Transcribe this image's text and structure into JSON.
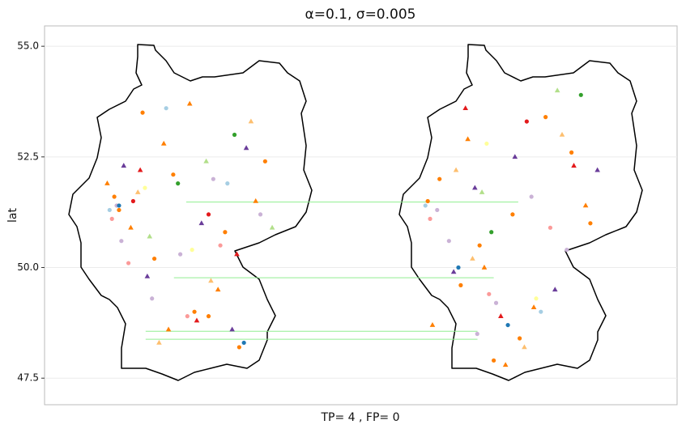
{
  "chart_data": {
    "type": "scatter",
    "title": "α=0.1, σ=0.005",
    "x_label": "TP= 4 , FP= 0",
    "y_label": "lat",
    "xlim": [
      3.84,
      30.68
    ],
    "ylim": [
      46.9,
      55.46
    ],
    "yticks": [
      47.5,
      {
        "value": 50,
        "label": "50.0"
      },
      52.5,
      {
        "value": 55,
        "label": "55.0"
      }
    ],
    "grid": true,
    "series": [
      {
        "shape": "circle",
        "color": "#ff7f00",
        "x": [
          7.0,
          8.5,
          10.2,
          12.1,
          9.3,
          6.8,
          11.5,
          8.0,
          13.2,
          10.8,
          20.6,
          22.3,
          24.0,
          21.5,
          26.2,
          23.7,
          25.1,
          20.1,
          22.9,
          27.0
        ],
        "y": [
          51.3,
          50.2,
          49.0,
          48.2,
          52.1,
          51.6,
          50.8,
          53.5,
          52.4,
          48.9,
          52.0,
          50.5,
          48.4,
          49.6,
          52.6,
          51.2,
          53.4,
          51.5,
          47.9,
          51.0
        ]
      },
      {
        "shape": "triangle",
        "color": "#ff7f00",
        "x": [
          9.1,
          7.5,
          11.2,
          8.9,
          12.8,
          10.0,
          6.5,
          20.3,
          22.5,
          24.6,
          26.8,
          21.8,
          23.4
        ],
        "y": [
          48.6,
          50.9,
          49.5,
          52.8,
          51.5,
          53.7,
          51.9,
          48.7,
          50.0,
          49.1,
          51.4,
          52.9,
          47.8
        ]
      },
      {
        "shape": "triangle",
        "color": "#6a3d9a",
        "x": [
          8.2,
          10.5,
          12.4,
          7.2,
          11.8,
          21.2,
          23.8,
          25.5,
          22.1,
          27.3
        ],
        "y": [
          49.8,
          51.0,
          52.7,
          52.3,
          48.6,
          49.9,
          52.5,
          49.5,
          51.8,
          52.2
        ]
      },
      {
        "shape": "circle",
        "color": "#cab2d6",
        "x": [
          7.1,
          9.6,
          11.0,
          8.4,
          13.0,
          6.9,
          21.0,
          23.0,
          24.5,
          20.5,
          26.0,
          22.2
        ],
        "y": [
          50.6,
          50.3,
          52.0,
          49.3,
          51.2,
          51.4,
          50.6,
          49.2,
          51.6,
          51.3,
          50.4,
          48.5
        ]
      },
      {
        "shape": "triangle",
        "color": "#fdbf6f",
        "x": [
          8.7,
          10.9,
          12.6,
          7.8,
          22.0,
          24.2,
          21.3,
          25.8
        ],
        "y": [
          48.3,
          49.7,
          53.3,
          51.7,
          50.2,
          48.2,
          52.2,
          53.0
        ]
      },
      {
        "shape": "circle",
        "color": "#fb9a99",
        "x": [
          6.7,
          7.4,
          9.9,
          11.3,
          20.2,
          22.7,
          25.3
        ],
        "y": [
          51.1,
          50.1,
          48.9,
          50.5,
          51.1,
          49.4,
          50.9
        ]
      },
      {
        "shape": "triangle",
        "color": "#e31a1c",
        "x": [
          7.9,
          10.3,
          12.0,
          21.7,
          23.2,
          26.3
        ],
        "y": [
          52.2,
          48.8,
          50.3,
          53.6,
          48.9,
          52.3
        ]
      },
      {
        "shape": "circle",
        "color": "#a6cee3",
        "x": [
          6.6,
          9.0,
          11.6,
          20.0,
          24.9
        ],
        "y": [
          51.3,
          53.6,
          51.9,
          51.4,
          49.0
        ]
      },
      {
        "shape": "triangle",
        "color": "#b2df8a",
        "x": [
          8.3,
          10.7,
          13.5,
          22.4,
          25.6
        ],
        "y": [
          50.7,
          52.4,
          50.9,
          51.7,
          54.0
        ]
      },
      {
        "shape": "circle",
        "color": "#1f78b4",
        "x": [
          7.0,
          12.3,
          21.4,
          23.5
        ],
        "y": [
          51.4,
          48.3,
          50.0,
          48.7
        ]
      },
      {
        "shape": "circle",
        "color": "#33a02c",
        "x": [
          9.5,
          11.9,
          22.8,
          26.6
        ],
        "y": [
          51.9,
          53.0,
          50.8,
          53.9
        ]
      },
      {
        "shape": "circle",
        "color": "#ffff99",
        "x": [
          8.1,
          10.1,
          22.6,
          24.7
        ],
        "y": [
          51.8,
          50.4,
          52.8,
          49.3
        ]
      },
      {
        "shape": "circle",
        "color": "#e31a1c",
        "x": [
          10.8,
          7.6,
          24.3
        ],
        "y": [
          51.2,
          51.5,
          53.3
        ]
      }
    ],
    "matches": {
      "color": "#90ee90",
      "segments": [
        {
          "x": [
            9.85,
            23.94
          ],
          "y": [
            51.48,
            51.48
          ]
        },
        {
          "x": [
            9.33,
            22.9
          ],
          "y": [
            49.77,
            49.77
          ]
        },
        {
          "x": [
            8.13,
            22.21
          ],
          "y": [
            48.56,
            48.56
          ]
        },
        {
          "x": [
            8.13,
            22.21
          ],
          "y": [
            48.38,
            48.38
          ]
        }
      ]
    }
  }
}
